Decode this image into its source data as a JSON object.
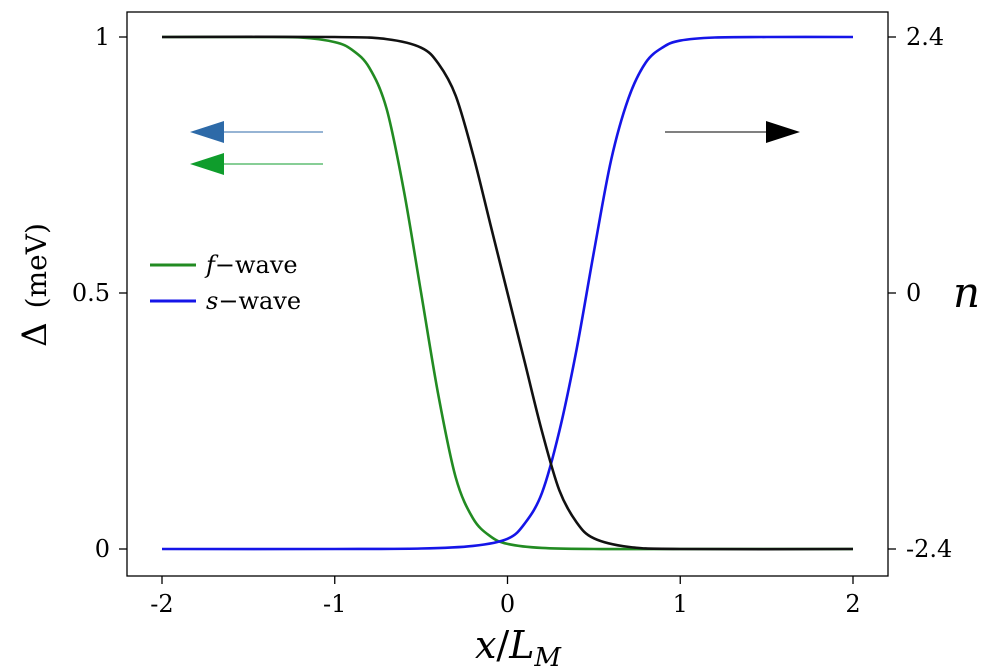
{
  "chart_data": {
    "type": "line",
    "x_label": {
      "var": "x",
      "slash": "/",
      "sym": "L",
      "sub": "M"
    },
    "y_left_label": {
      "symbol": "Δ",
      "unit": "(meV)"
    },
    "y_right_label": "n",
    "x_range": [
      -2,
      2
    ],
    "y_left_range": [
      0,
      1
    ],
    "y_right_range": [
      -2.4,
      2.4
    ],
    "x_ticks": [
      {
        "value": -2,
        "label": "-2"
      },
      {
        "value": -1,
        "label": "-1"
      },
      {
        "value": 0,
        "label": "0"
      },
      {
        "value": 1,
        "label": "1"
      },
      {
        "value": 2,
        "label": "2"
      }
    ],
    "y_left_ticks": [
      {
        "value": 0,
        "label": "0"
      },
      {
        "value": 0.5,
        "label": "0.5"
      },
      {
        "value": 1,
        "label": "1"
      }
    ],
    "y_right_ticks": [
      {
        "value": -2.4,
        "label": "-2.4"
      },
      {
        "value": 0,
        "label": "0"
      },
      {
        "value": 2.4,
        "label": "2.4"
      }
    ],
    "series": [
      {
        "key": "f-wave",
        "legend_symbol": "f",
        "legend_text": "−wave",
        "color": "#228B22",
        "axis": "left",
        "x": [
          -2,
          -1.5,
          -1.2,
          -1.0,
          -0.9,
          -0.8,
          -0.7,
          -0.6,
          -0.5,
          -0.4,
          -0.3,
          -0.2,
          -0.1,
          0,
          0.2,
          0.5,
          1,
          2
        ],
        "values": [
          1,
          1,
          0.999,
          0.99,
          0.975,
          0.94,
          0.86,
          0.7,
          0.5,
          0.3,
          0.14,
          0.06,
          0.025,
          0.01,
          0.002,
          0,
          0,
          0
        ]
      },
      {
        "key": "s-wave",
        "legend_symbol": "s",
        "legend_text": "−wave",
        "color": "#1515E8",
        "axis": "left",
        "x": [
          -2,
          -1,
          -0.5,
          -0.2,
          0,
          0.1,
          0.2,
          0.3,
          0.4,
          0.5,
          0.6,
          0.7,
          0.8,
          0.9,
          1.0,
          1.2,
          1.5,
          2
        ],
        "values": [
          0,
          0,
          0.001,
          0.006,
          0.02,
          0.05,
          0.11,
          0.23,
          0.39,
          0.58,
          0.76,
          0.88,
          0.95,
          0.98,
          0.993,
          0.999,
          1,
          1
        ]
      },
      {
        "key": "n",
        "color": "#111111",
        "axis": "right",
        "x": [
          -2,
          -1.0,
          -0.7,
          -0.5,
          -0.4,
          -0.3,
          -0.2,
          -0.1,
          0,
          0.1,
          0.2,
          0.3,
          0.4,
          0.5,
          0.7,
          1.0,
          2
        ],
        "values": [
          2.4,
          2.4,
          2.38,
          2.3,
          2.15,
          1.85,
          1.3,
          0.65,
          0,
          -0.65,
          -1.3,
          -1.85,
          -2.15,
          -2.3,
          -2.38,
          -2.4,
          -2.4
        ]
      }
    ],
    "legend_placement": "left-middle",
    "grid": false
  }
}
